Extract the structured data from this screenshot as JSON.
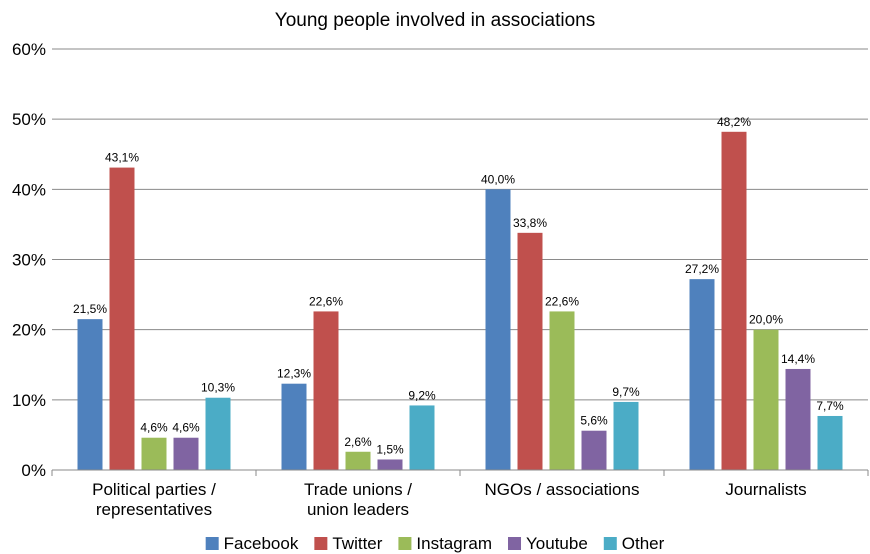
{
  "chart_data": {
    "type": "bar",
    "title": "Young people involved in associations",
    "categories": [
      [
        "Political parties /",
        "representatives"
      ],
      [
        "Trade unions /",
        "union leaders"
      ],
      [
        "NGOs / associations"
      ],
      [
        "Journalists"
      ]
    ],
    "series": [
      {
        "name": "Facebook",
        "color": "#4f81bd",
        "values": [
          21.5,
          12.3,
          40.0,
          27.2
        ],
        "labels": [
          "21,5%",
          "12,3%",
          "40,0%",
          "27,2%"
        ]
      },
      {
        "name": "Twitter",
        "color": "#c0504d",
        "values": [
          43.1,
          22.6,
          33.8,
          48.2
        ],
        "labels": [
          "43,1%",
          "22,6%",
          "33,8%",
          "48,2%"
        ]
      },
      {
        "name": "Instagram",
        "color": "#9bbb59",
        "values": [
          4.6,
          2.6,
          22.6,
          20.0
        ],
        "labels": [
          "4,6%",
          "2,6%",
          "22,6%",
          "20,0%"
        ]
      },
      {
        "name": "Youtube",
        "color": "#8064a2",
        "values": [
          4.6,
          1.5,
          5.6,
          14.4
        ],
        "labels": [
          "4,6%",
          "1,5%",
          "5,6%",
          "14,4%"
        ]
      },
      {
        "name": "Other",
        "color": "#4bacc6",
        "values": [
          10.3,
          9.2,
          9.7,
          7.7
        ],
        "labels": [
          "10,3%",
          "9,2%",
          "9,7%",
          "7,7%"
        ]
      }
    ],
    "yticks": [
      0,
      10,
      20,
      30,
      40,
      50,
      60
    ],
    "ytick_labels": [
      "0%",
      "10%",
      "20%",
      "30%",
      "40%",
      "50%",
      "60%"
    ],
    "ylim": [
      0,
      60
    ],
    "grid": true,
    "legend_position": "bottom"
  }
}
